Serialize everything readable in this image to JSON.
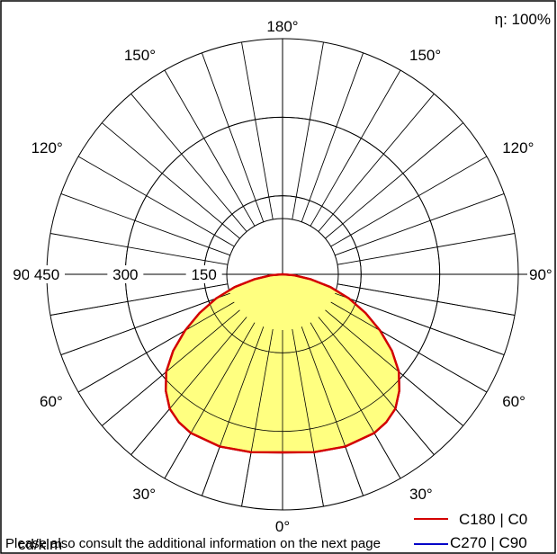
{
  "chart_data": {
    "type": "polar-intensity",
    "efficiency_label": "η: 100%",
    "unit_label": "cd/klm",
    "footnote": "Please also consult the additional information on the next page",
    "radial_ticks": [
      "150",
      "300",
      "450"
    ],
    "radial_max": 450,
    "angle_labels": [
      {
        "text": "0°",
        "angle": 0,
        "side": "center"
      },
      {
        "text": "30°",
        "angle": 30,
        "side": "left"
      },
      {
        "text": "30°",
        "angle": 30,
        "side": "right"
      },
      {
        "text": "60°",
        "angle": 60,
        "side": "left"
      },
      {
        "text": "60°",
        "angle": 60,
        "side": "right"
      },
      {
        "text": "90°",
        "angle": 90,
        "side": "left"
      },
      {
        "text": "90°",
        "angle": 90,
        "side": "right"
      },
      {
        "text": "120°",
        "angle": 120,
        "side": "left"
      },
      {
        "text": "120°",
        "angle": 120,
        "side": "right"
      },
      {
        "text": "150°",
        "angle": 150,
        "side": "left"
      },
      {
        "text": "150°",
        "angle": 150,
        "side": "right"
      },
      {
        "text": "180°",
        "angle": 180,
        "side": "center"
      }
    ],
    "series": [
      {
        "name": "C180 | C0",
        "color": "#d40000",
        "fill": "#ffff80",
        "angles": [
          0,
          10,
          20,
          30,
          35,
          40,
          45,
          50,
          55,
          60,
          65,
          70,
          75,
          80,
          85,
          90
        ],
        "values": [
          340,
          345,
          350,
          350,
          345,
          335,
          315,
          290,
          255,
          215,
          175,
          135,
          95,
          55,
          22,
          0
        ]
      },
      {
        "name": "C270 | C90",
        "color": "#0000c8",
        "angles": [
          0,
          10,
          20,
          30,
          35,
          40,
          45,
          50,
          55,
          60,
          65,
          70,
          75,
          80,
          85,
          90
        ],
        "values": [
          340,
          345,
          350,
          350,
          345,
          335,
          315,
          290,
          255,
          215,
          175,
          135,
          95,
          55,
          22,
          0
        ]
      }
    ]
  }
}
